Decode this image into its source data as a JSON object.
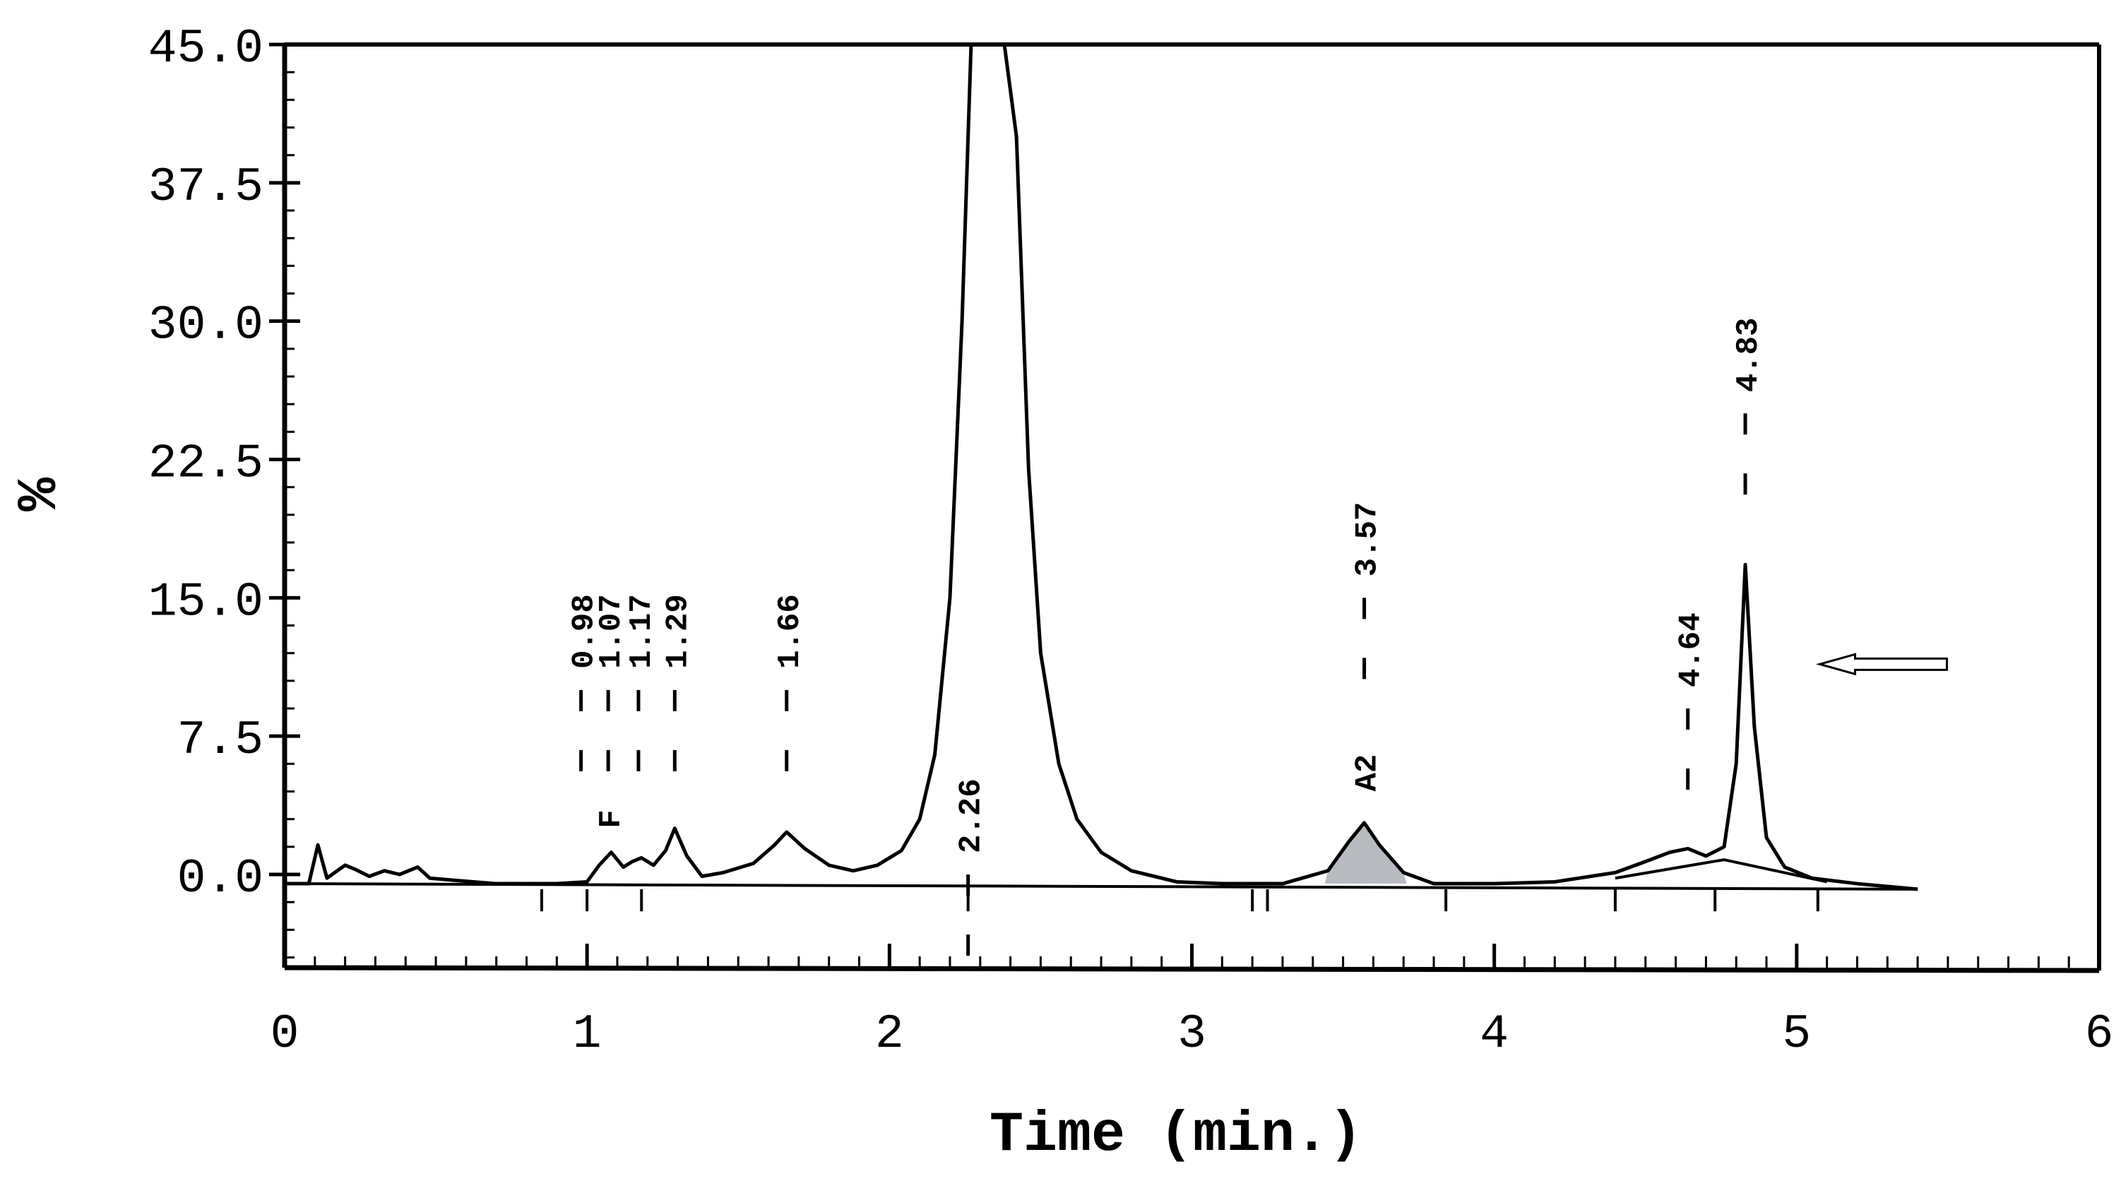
{
  "chart_data": {
    "type": "line",
    "xlabel": "Time (min.)",
    "ylabel": "%",
    "xlim": [
      0,
      6
    ],
    "ylim": [
      -4.5,
      45.0
    ],
    "x_ticks": [
      "0",
      "1",
      "2",
      "3",
      "4",
      "5",
      "6"
    ],
    "y_ticks": [
      "45.0",
      "37.5",
      "30.0",
      "22.5",
      "15.0",
      "7.5",
      "0.0"
    ],
    "grid": false,
    "series": [
      {
        "x": [
          0.0,
          0.08,
          0.11,
          0.14,
          0.2,
          0.23,
          0.28,
          0.33,
          0.38,
          0.44,
          0.48,
          0.55,
          0.7,
          0.9,
          1.0,
          1.04,
          1.08,
          1.12,
          1.15,
          1.18,
          1.22,
          1.26,
          1.29,
          1.33,
          1.38,
          1.45,
          1.55,
          1.62,
          1.66,
          1.72,
          1.8,
          1.88,
          1.96,
          2.04,
          2.1,
          2.15,
          2.2,
          2.24,
          2.27,
          2.3,
          2.34,
          2.38,
          2.42,
          2.46,
          2.5,
          2.56,
          2.62,
          2.7,
          2.8,
          2.95,
          3.1,
          3.3,
          3.45,
          3.52,
          3.57,
          3.62,
          3.7,
          3.8,
          4.0,
          4.2,
          4.4,
          4.5,
          4.58,
          4.64,
          4.7,
          4.76,
          4.8,
          4.83,
          4.86,
          4.9,
          4.96,
          5.05,
          5.2,
          5.4
        ],
        "y": [
          -0.5,
          -0.5,
          1.6,
          -0.2,
          0.5,
          0.3,
          -0.1,
          0.2,
          0.0,
          0.4,
          -0.2,
          -0.3,
          -0.5,
          -0.5,
          -0.4,
          0.5,
          1.2,
          0.4,
          0.7,
          0.9,
          0.5,
          1.3,
          2.5,
          1.0,
          -0.1,
          0.1,
          0.6,
          1.6,
          2.3,
          1.4,
          0.5,
          0.2,
          0.5,
          1.3,
          3.0,
          6.5,
          15.0,
          30.0,
          45.0,
          45.0,
          45.0,
          45.0,
          40.0,
          22.0,
          12.0,
          6.0,
          3.0,
          1.2,
          0.2,
          -0.4,
          -0.5,
          -0.5,
          0.2,
          1.8,
          2.8,
          1.6,
          0.1,
          -0.5,
          -0.5,
          -0.4,
          0.1,
          0.7,
          1.2,
          1.4,
          1.0,
          1.5,
          6.0,
          16.8,
          8.0,
          2.0,
          0.4,
          -0.2,
          -0.5,
          -0.8
        ]
      }
    ],
    "peaks": [
      {
        "label": "0.98",
        "x": 0.98
      },
      {
        "label": "1.07",
        "x": 1.07
      },
      {
        "label": "1.17",
        "x": 1.17
      },
      {
        "label": "1.29",
        "x": 1.29
      },
      {
        "label": "1.66",
        "x": 1.66
      },
      {
        "label": "2.26",
        "x": 2.26
      },
      {
        "label": "3.57",
        "x": 3.57
      },
      {
        "label": "4.64",
        "x": 4.64
      },
      {
        "label": "4.83",
        "x": 4.83
      }
    ],
    "peak_tags": [
      {
        "label": "F",
        "x": 1.07
      },
      {
        "label": "A2",
        "x": 3.57
      }
    ],
    "shaded_peak": {
      "x_start": 3.44,
      "x_end": 3.71,
      "color": "#b8bcc0"
    },
    "annotations": [
      {
        "type": "arrow",
        "direction": "left",
        "x": 5.45,
        "y": 11.4
      }
    ]
  }
}
